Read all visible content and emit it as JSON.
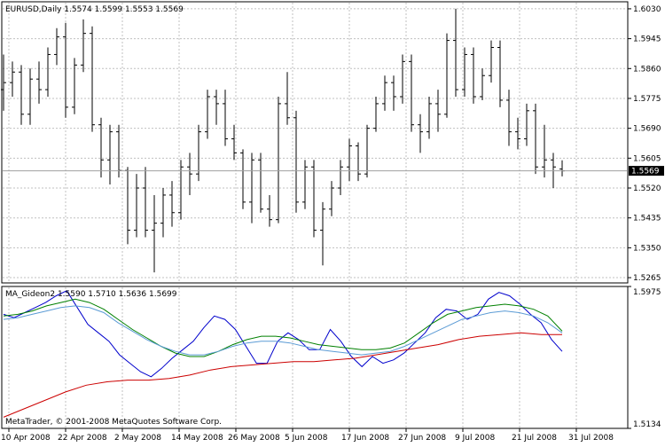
{
  "main_chart": {
    "header": "EURUSD,Daily  1.5574 1.5599 1.5553 1.5569",
    "ylim": [
      1.525,
      1.605
    ],
    "y_ticks": [
      "1.6030",
      "1.5945",
      "1.5860",
      "1.5775",
      "1.5690",
      "1.5605",
      "1.5520",
      "1.5435",
      "1.5350",
      "1.5265"
    ],
    "current_price": 1.5569,
    "current_price_label": "1.5569"
  },
  "indicator": {
    "header": "MA_Gideon2 1.5590 1.5710 1.5636 1.5699",
    "ylim": [
      1.5134,
      1.5975
    ],
    "y_ticks": [
      "1.5975",
      "1.5134"
    ]
  },
  "x_ticks": [
    "10 Apr 2008",
    "22 Apr 2008",
    "2 May 2008",
    "14 May 2008",
    "26 May 2008",
    "5 Jun 2008",
    "17 Jun 2008",
    "27 Jun 2008",
    "9 Jul 2008",
    "21 Jul 2008",
    "31 Jul 2008"
  ],
  "copyright": "MetaTrader, © 2001-2008 MetaQuotes Software Corp.",
  "colors": {
    "bars": "#000000",
    "grid": "#c0c0c0",
    "blue_line": "#0000cc",
    "green_line": "#008000",
    "lightblue_line": "#5b9bd5",
    "red_line": "#cc0000"
  },
  "chart_data": [
    {
      "type": "bar",
      "subtype": "ohlc",
      "symbol": "EURUSD",
      "timeframe": "Daily",
      "x_ticks": [
        "10 Apr 2008",
        "22 Apr 2008",
        "2 May 2008",
        "14 May 2008",
        "26 May 2008",
        "5 Jun 2008",
        "17 Jun 2008",
        "27 Jun 2008",
        "9 Jul 2008",
        "21 Jul 2008",
        "31 Jul 2008"
      ],
      "ylim": [
        1.525,
        1.605
      ],
      "bars": [
        [
          1.58,
          1.59,
          1.574,
          1.582
        ],
        [
          1.582,
          1.588,
          1.578,
          1.585
        ],
        [
          1.585,
          1.587,
          1.57,
          1.573
        ],
        [
          1.573,
          1.586,
          1.57,
          1.583
        ],
        [
          1.583,
          1.588,
          1.576,
          1.58
        ],
        [
          1.58,
          1.592,
          1.578,
          1.59
        ],
        [
          1.59,
          1.5975,
          1.587,
          1.595
        ],
        [
          1.595,
          1.599,
          1.572,
          1.575
        ],
        [
          1.575,
          1.589,
          1.573,
          1.587
        ],
        [
          1.587,
          1.6,
          1.585,
          1.596
        ],
        [
          1.596,
          1.598,
          1.568,
          1.57
        ],
        [
          1.57,
          1.572,
          1.555,
          1.56
        ],
        [
          1.56,
          1.57,
          1.553,
          1.568
        ],
        [
          1.568,
          1.57,
          1.555,
          1.557
        ],
        [
          1.557,
          1.558,
          1.536,
          1.54
        ],
        [
          1.54,
          1.556,
          1.538,
          1.552
        ],
        [
          1.552,
          1.558,
          1.538,
          1.54
        ],
        [
          1.54,
          1.55,
          1.528,
          1.542
        ],
        [
          1.542,
          1.552,
          1.538,
          1.55
        ],
        [
          1.55,
          1.554,
          1.541,
          1.545
        ],
        [
          1.545,
          1.56,
          1.543,
          1.558
        ],
        [
          1.558,
          1.562,
          1.55,
          1.556
        ],
        [
          1.556,
          1.57,
          1.554,
          1.568
        ],
        [
          1.568,
          1.58,
          1.566,
          1.578
        ],
        [
          1.578,
          1.58,
          1.57,
          1.576
        ],
        [
          1.576,
          1.58,
          1.564,
          1.566
        ],
        [
          1.566,
          1.57,
          1.56,
          1.562
        ],
        [
          1.562,
          1.563,
          1.546,
          1.548
        ],
        [
          1.548,
          1.562,
          1.542,
          1.56
        ],
        [
          1.56,
          1.562,
          1.545,
          1.546
        ],
        [
          1.546,
          1.55,
          1.541,
          1.543
        ],
        [
          1.543,
          1.578,
          1.542,
          1.576
        ],
        [
          1.576,
          1.585,
          1.57,
          1.572
        ],
        [
          1.572,
          1.574,
          1.545,
          1.548
        ],
        [
          1.548,
          1.56,
          1.546,
          1.558
        ],
        [
          1.558,
          1.56,
          1.538,
          1.54
        ],
        [
          1.54,
          1.548,
          1.53,
          1.546
        ],
        [
          1.546,
          1.554,
          1.544,
          1.552
        ],
        [
          1.552,
          1.56,
          1.55,
          1.558
        ],
        [
          1.558,
          1.566,
          1.554,
          1.564
        ],
        [
          1.564,
          1.565,
          1.554,
          1.556
        ],
        [
          1.556,
          1.57,
          1.555,
          1.569
        ],
        [
          1.569,
          1.578,
          1.568,
          1.576
        ],
        [
          1.576,
          1.584,
          1.574,
          1.582
        ],
        [
          1.582,
          1.584,
          1.574,
          1.578
        ],
        [
          1.578,
          1.59,
          1.576,
          1.588
        ],
        [
          1.588,
          1.59,
          1.568,
          1.57
        ],
        [
          1.57,
          1.573,
          1.562,
          1.568
        ],
        [
          1.568,
          1.578,
          1.566,
          1.576
        ],
        [
          1.576,
          1.58,
          1.568,
          1.573
        ],
        [
          1.573,
          1.596,
          1.572,
          1.594
        ],
        [
          1.594,
          1.603,
          1.578,
          1.58
        ],
        [
          1.58,
          1.592,
          1.578,
          1.59
        ],
        [
          1.59,
          1.592,
          1.576,
          1.578
        ],
        [
          1.578,
          1.586,
          1.577,
          1.584
        ],
        [
          1.584,
          1.594,
          1.582,
          1.592
        ],
        [
          1.592,
          1.594,
          1.575,
          1.577
        ],
        [
          1.577,
          1.58,
          1.564,
          1.568
        ],
        [
          1.568,
          1.572,
          1.563,
          1.566
        ],
        [
          1.566,
          1.576,
          1.564,
          1.574
        ],
        [
          1.574,
          1.576,
          1.556,
          1.558
        ],
        [
          1.558,
          1.57,
          1.555,
          1.56
        ],
        [
          1.56,
          1.562,
          1.552,
          1.558
        ],
        [
          1.5574,
          1.5599,
          1.5553,
          1.5569
        ]
      ]
    },
    {
      "type": "line",
      "name": "MA_Gideon2",
      "ylim": [
        1.5134,
        1.5975
      ],
      "header_values": [
        1.559,
        1.571,
        1.5636,
        1.5699
      ],
      "series": [
        {
          "color": "#0000cc",
          "values": [
            1.581,
            1.579,
            1.582,
            1.585,
            1.588,
            1.592,
            1.595,
            1.585,
            1.575,
            1.57,
            1.565,
            1.557,
            1.552,
            1.547,
            1.544,
            1.549,
            1.555,
            1.56,
            1.565,
            1.573,
            1.58,
            1.578,
            1.572,
            1.562,
            1.552,
            1.552,
            1.565,
            1.57,
            1.566,
            1.56,
            1.56,
            1.572,
            1.565,
            1.556,
            1.55,
            1.556,
            1.552,
            1.554,
            1.558,
            1.564,
            1.57,
            1.579,
            1.584,
            1.583,
            1.578,
            1.581,
            1.59,
            1.594,
            1.592,
            1.587,
            1.581,
            1.576,
            1.566,
            1.559
          ]
        },
        {
          "color": "#008000",
          "values": [
            1.58,
            1.581,
            1.583,
            1.586,
            1.588,
            1.59,
            1.588,
            1.584,
            1.578,
            1.572,
            1.567,
            1.562,
            1.558,
            1.556,
            1.556,
            1.559,
            1.563,
            1.566,
            1.568,
            1.568,
            1.567,
            1.565,
            1.563,
            1.562,
            1.561,
            1.56,
            1.56,
            1.561,
            1.564,
            1.57,
            1.576,
            1.581,
            1.583,
            1.585,
            1.586,
            1.587,
            1.586,
            1.584,
            1.58,
            1.571
          ]
        },
        {
          "color": "#5b9bd5",
          "values": [
            1.578,
            1.579,
            1.581,
            1.583,
            1.585,
            1.586,
            1.585,
            1.582,
            1.576,
            1.571,
            1.566,
            1.562,
            1.559,
            1.557,
            1.557,
            1.559,
            1.562,
            1.564,
            1.565,
            1.565,
            1.564,
            1.562,
            1.56,
            1.559,
            1.558,
            1.557,
            1.558,
            1.559,
            1.562,
            1.566,
            1.57,
            1.574,
            1.578,
            1.58,
            1.582,
            1.583,
            1.582,
            1.58,
            1.576,
            1.57
          ]
        },
        {
          "color": "#cc0000",
          "values": [
            1.52,
            1.525,
            1.53,
            1.535,
            1.539,
            1.541,
            1.542,
            1.542,
            1.543,
            1.545,
            1.548,
            1.55,
            1.551,
            1.552,
            1.553,
            1.553,
            1.554,
            1.555,
            1.557,
            1.559,
            1.561,
            1.563,
            1.566,
            1.568,
            1.569,
            1.57,
            1.569,
            1.569
          ]
        }
      ]
    }
  ]
}
